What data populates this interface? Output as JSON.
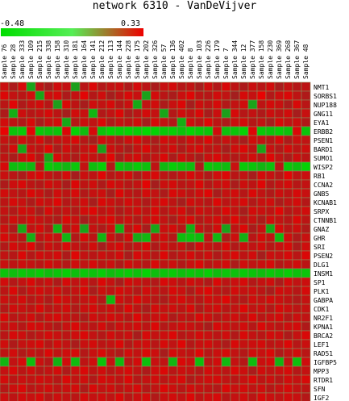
{
  "chart_data": {
    "type": "heatmap",
    "title": "network 6310 - VanDeVijver",
    "scale": {
      "min": -0.48,
      "max": 0.33,
      "min_label": "-0.48",
      "max_label": "0.33",
      "low_color": "#00dd00",
      "mid_color": "#444444",
      "high_color": "#ee0000"
    },
    "columns": [
      "Sample 76",
      "Sample 28",
      "Sample 333",
      "Sample 109",
      "Sample 215",
      "Sample 338",
      "Sample 158",
      "Sample 310",
      "Sample 181",
      "Sample 164",
      "Sample 141",
      "Sample 212",
      "Sample 113",
      "Sample 144",
      "Sample 228",
      "Sample 175",
      "Sample 202",
      "Sample 326",
      "Sample 57",
      "Sample 136",
      "Sample 402",
      "Sample 8",
      "Sample 103",
      "Sample 226",
      "Sample 179",
      "Sample 7",
      "Sample 344",
      "Sample 12",
      "Sample 377",
      "Sample 158",
      "Sample 230",
      "Sample 369",
      "Sample 268",
      "Sample 367",
      "Sample 48"
    ],
    "rows": [
      "NMT1",
      "SORBS1",
      "NUP188",
      "GNG11",
      "EYA1",
      "ERBB2",
      "PSEN1",
      "BARD1",
      "SUMO1",
      "WISP2",
      "RB1",
      "CCNA2",
      "GNB5",
      "KCNAB1",
      "SRPX",
      "CTNNB1",
      "GNAZ",
      "GHR",
      "SRI",
      "PSEN2",
      "DLG1",
      "INSM1",
      "SP1",
      "PLK1",
      "GABPA",
      "CDK1",
      "NR2F1",
      "KPNA1",
      "BRCA2",
      "LEF1",
      "RAD51",
      "IGFBP5",
      "MPP3",
      "RTDR1",
      "SFN",
      "IGF2"
    ],
    "values": [
      [
        0.18,
        0.05,
        0.22,
        -0.08,
        0.12,
        0.02,
        0.2,
        0.15,
        -0.05,
        0.1,
        0.25,
        0.08,
        0.14,
        0.18,
        0.06,
        0.22,
        0.11,
        0.04,
        0.16,
        0.21,
        0.09,
        0.13,
        0.02,
        0.19,
        0.07,
        0.24,
        0.12,
        0.05,
        0.17,
        0.1,
        0.2,
        0.03,
        0.15,
        0.08,
        0.12
      ],
      [
        0.25,
        0.14,
        0.1,
        0.2,
        -0.1,
        0.18,
        0.22,
        0.05,
        0.15,
        0.28,
        0.08,
        0.19,
        0.02,
        0.12,
        0.23,
        0.16,
        -0.06,
        0.21,
        0.1,
        0.04,
        0.17,
        0.26,
        0.11,
        0.09,
        0.2,
        0.13,
        0.01,
        0.22,
        0.15,
        0.3,
        0.07,
        0.18,
        0.24,
        0.12,
        0.06
      ],
      [
        0.1,
        0.27,
        0.06,
        0.15,
        0.2,
        0.09,
        -0.04,
        0.24,
        0.12,
        0.03,
        0.19,
        0.14,
        0.22,
        0.08,
        0.17,
        -0.12,
        0.13,
        0.2,
        0.05,
        0.16,
        0.25,
        0.02,
        0.18,
        0.11,
        0.22,
        0.07,
        0.14,
        0.19,
        -0.08,
        0.12,
        0.21,
        0.16,
        0.04,
        0.23,
        0.1
      ],
      [
        0.05,
        -0.15,
        0.18,
        0.09,
        0.14,
        0.22,
        0.11,
        0.02,
        0.2,
        0.16,
        -0.2,
        0.07,
        0.13,
        0.25,
        0.04,
        0.1,
        0.21,
        0.15,
        -0.1,
        0.08,
        0.19,
        0.12,
        0.24,
        0.03,
        0.17,
        -0.05,
        0.22,
        0.09,
        0.14,
        0.06,
        0.18,
        0.11,
        0.2,
        0.02,
        0.16
      ],
      [
        0.2,
        0.12,
        0.07,
        0.23,
        0.03,
        0.16,
        0.21,
        -0.12,
        0.09,
        0.18,
        0.13,
        0.25,
        0.06,
        0.15,
        0.11,
        0.2,
        0.02,
        0.22,
        0.14,
        0.08,
        -0.15,
        0.19,
        0.1,
        0.26,
        0.12,
        0.05,
        0.17,
        0.21,
        0.09,
        0.14,
        0.02,
        0.23,
        0.13,
        0.18,
        0.07
      ],
      [
        0.3,
        -0.3,
        -0.35,
        0.28,
        -0.32,
        -0.28,
        -0.3,
        0.25,
        -0.4,
        -0.25,
        0.22,
        -0.3,
        -0.42,
        -0.38,
        -0.4,
        -0.36,
        -0.45,
        -0.4,
        -0.34,
        -0.38,
        -0.3,
        -0.42,
        -0.35,
        -0.3,
        0.2,
        -0.28,
        -0.32,
        -0.4,
        0.26,
        -0.34,
        -0.3,
        -0.36,
        -0.28,
        0.24,
        -0.3
      ],
      [
        0.15,
        0.08,
        0.19,
        0.11,
        0.22,
        0.05,
        0.14,
        0.17,
        0.24,
        0.09,
        0.02,
        0.2,
        0.13,
        0.06,
        0.18,
        0.23,
        0.1,
        0.04,
        0.21,
        0.15,
        0.08,
        0.19,
        0.12,
        0.25,
        0.07,
        0.16,
        0.11,
        0.03,
        0.2,
        0.14,
        0.09,
        0.22,
        0.05,
        0.17,
        0.13
      ],
      [
        0.08,
        0.21,
        -0.1,
        0.16,
        0.12,
        0.27,
        0.04,
        0.19,
        0.09,
        0.14,
        0.23,
        -0.05,
        0.18,
        0.11,
        0.02,
        0.15,
        0.24,
        0.08,
        0.13,
        0.2,
        0.06,
        0.17,
        0.22,
        0.1,
        0.14,
        0.03,
        0.19,
        0.25,
        0.12,
        -0.08,
        0.16,
        0.07,
        0.21,
        0.11,
        0.18
      ],
      [
        0.12,
        0.04,
        0.17,
        0.25,
        0.09,
        -0.08,
        0.22,
        0.13,
        0.06,
        0.2,
        0.15,
        0.1,
        0.28,
        0.03,
        0.16,
        0.21,
        0.08,
        0.14,
        0.24,
        0.05,
        0.19,
        0.11,
        0.02,
        0.17,
        0.23,
        0.12,
        0.07,
        0.15,
        0.2,
        0.09,
        0.26,
        0.13,
        0.04,
        0.18,
        0.1
      ],
      [
        0.22,
        -0.25,
        -0.3,
        -0.22,
        0.1,
        -0.35,
        -0.28,
        -0.2,
        -0.32,
        0.14,
        -0.26,
        -0.38,
        0.08,
        -0.3,
        -0.24,
        -0.34,
        -0.28,
        0.12,
        -0.22,
        -0.36,
        -0.3,
        -0.26,
        0.05,
        -0.32,
        -0.28,
        -0.24,
        0.16,
        -0.34,
        -0.3,
        -0.2,
        -0.28,
        0.1,
        -0.32,
        -0.26,
        -0.4
      ],
      [
        0.16,
        0.1,
        0.05,
        0.19,
        0.24,
        0.13,
        0.08,
        0.21,
        0.02,
        0.17,
        0.12,
        0.26,
        0.09,
        0.15,
        0.2,
        0.04,
        0.18,
        0.23,
        0.11,
        0.07,
        0.14,
        0.22,
        0.16,
        0.06,
        0.19,
        0.25,
        0.1,
        0.13,
        0.03,
        0.21,
        0.15,
        0.08,
        0.27,
        0.12,
        0.17
      ],
      [
        0.05,
        0.18,
        0.23,
        0.11,
        0.07,
        0.2,
        0.15,
        0.03,
        0.25,
        0.12,
        0.19,
        0.06,
        0.22,
        0.16,
        0.09,
        0.14,
        0.28,
        0.02,
        0.17,
        0.21,
        0.1,
        0.13,
        0.24,
        0.08,
        0.16,
        0.2,
        0.04,
        0.18,
        0.12,
        0.26,
        0.07,
        0.15,
        0.21,
        0.09,
        0.14
      ],
      [
        0.2,
        0.13,
        0.09,
        0.24,
        0.16,
        0.04,
        0.19,
        0.11,
        0.22,
        0.07,
        0.15,
        0.18,
        0.02,
        0.25,
        0.12,
        0.08,
        0.21,
        0.14,
        0.05,
        0.23,
        0.17,
        0.1,
        0.19,
        0.26,
        0.03,
        0.15,
        0.2,
        0.09,
        0.24,
        0.13,
        0.06,
        0.18,
        0.11,
        0.22,
        0.16
      ],
      [
        0.11,
        0.22,
        0.16,
        0.05,
        0.2,
        0.14,
        0.26,
        0.08,
        0.13,
        0.19,
        0.03,
        0.24,
        0.17,
        0.1,
        0.21,
        0.15,
        0.06,
        0.18,
        0.23,
        0.12,
        0.02,
        0.2,
        0.14,
        0.09,
        0.25,
        0.11,
        0.17,
        0.22,
        0.07,
        0.16,
        0.19,
        0.04,
        0.13,
        0.21,
        0.08
      ],
      [
        0.14,
        0.07,
        0.2,
        0.17,
        0.02,
        0.23,
        0.1,
        0.15,
        0.08,
        0.21,
        0.26,
        0.12,
        0.18,
        0.05,
        0.14,
        0.2,
        0.11,
        0.24,
        0.09,
        0.16,
        0.22,
        0.06,
        0.19,
        0.13,
        0.1,
        0.25,
        0.15,
        0.03,
        0.21,
        0.17,
        0.12,
        0.27,
        0.08,
        0.14,
        0.2
      ],
      [
        0.09,
        0.19,
        0.12,
        0.21,
        0.15,
        0.1,
        0.06,
        0.24,
        0.17,
        0.02,
        0.13,
        0.2,
        0.25,
        0.11,
        0.18,
        0.07,
        0.16,
        0.22,
        0.14,
        0.04,
        0.19,
        0.23,
        0.08,
        0.15,
        0.21,
        0.12,
        0.26,
        0.1,
        0.16,
        0.05,
        0.2,
        0.14,
        0.09,
        0.24,
        0.11
      ],
      [
        0.18,
        0.05,
        -0.12,
        0.13,
        0.22,
        0.08,
        -0.18,
        0.1,
        0.2,
        -0.08,
        0.15,
        0.06,
        0.19,
        -0.14,
        0.11,
        0.24,
        0.03,
        -0.1,
        0.17,
        0.21,
        0.09,
        -0.16,
        0.14,
        0.07,
        0.2,
        -0.06,
        0.12,
        0.25,
        0.04,
        0.16,
        -0.12,
        0.22,
        0.1,
        0.18,
        0.06
      ],
      [
        0.22,
        0.16,
        0.09,
        -0.15,
        0.12,
        0.2,
        0.14,
        -0.18,
        0.07,
        0.23,
        0.11,
        -0.2,
        0.17,
        0.04,
        0.21,
        -0.12,
        -0.22,
        0.15,
        0.19,
        0.08,
        -0.26,
        -0.3,
        -0.24,
        0.13,
        -0.2,
        0.06,
        0.18,
        -0.16,
        0.1,
        0.22,
        0.14,
        -0.22,
        0.2,
        0.05,
        0.16
      ],
      [
        0.07,
        0.21,
        0.15,
        0.26,
        0.04,
        0.18,
        0.11,
        0.23,
        0.14,
        0.09,
        0.2,
        0.02,
        0.16,
        0.22,
        0.08,
        0.13,
        0.25,
        0.06,
        0.19,
        0.12,
        0.17,
        0.03,
        0.21,
        0.15,
        0.1,
        0.24,
        0.07,
        0.18,
        0.13,
        0.2,
        0.09,
        0.16,
        0.23,
        0.04,
        0.19
      ],
      [
        0.13,
        0.09,
        0.24,
        0.08,
        0.19,
        0.15,
        0.21,
        0.05,
        0.26,
        0.14,
        0.1,
        0.17,
        0.12,
        0.2,
        0.03,
        0.22,
        0.16,
        0.09,
        0.25,
        0.07,
        0.13,
        0.21,
        0.11,
        0.18,
        0.06,
        0.16,
        0.23,
        0.12,
        0.2,
        0.02,
        0.17,
        0.14,
        0.22,
        0.1,
        0.25
      ],
      [
        0.16,
        0.12,
        0.18,
        0.14,
        0.1,
        0.21,
        0.15,
        0.08,
        0.19,
        0.13,
        0.22,
        0.11,
        0.17,
        0.06,
        0.2,
        0.14,
        0.09,
        0.23,
        0.12,
        0.18,
        0.07,
        0.16,
        0.24,
        0.1,
        0.15,
        0.21,
        0.05,
        0.19,
        0.13,
        0.17,
        0.22,
        0.08,
        0.14,
        0.2,
        0.11
      ],
      [
        -0.3,
        -0.26,
        -0.32,
        -0.28,
        -0.35,
        -0.24,
        -0.3,
        -0.38,
        -0.27,
        -0.33,
        -0.29,
        -0.36,
        -0.25,
        -0.31,
        -0.34,
        -0.28,
        -0.4,
        -0.26,
        -0.3,
        -0.35,
        -0.27,
        -0.32,
        -0.29,
        -0.37,
        -0.24,
        -0.31,
        -0.28,
        -0.34,
        -0.3,
        -0.26,
        -0.33,
        -0.29,
        -0.36,
        -0.27,
        -0.31
      ],
      [
        0.2,
        0.08,
        0.14,
        0.24,
        0.11,
        0.17,
        0.05,
        0.22,
        0.13,
        0.19,
        0.09,
        0.25,
        0.15,
        0.03,
        0.21,
        0.16,
        0.12,
        0.07,
        0.23,
        0.18,
        0.1,
        0.2,
        0.14,
        0.06,
        0.24,
        0.11,
        0.17,
        0.22,
        0.08,
        0.15,
        0.19,
        0.04,
        0.21,
        0.13,
        0.18
      ],
      [
        0.11,
        0.24,
        0.06,
        0.17,
        0.21,
        0.13,
        0.19,
        0.09,
        0.15,
        0.25,
        0.04,
        0.18,
        0.12,
        0.22,
        0.16,
        0.07,
        0.2,
        0.14,
        0.1,
        0.23,
        0.17,
        0.05,
        0.19,
        0.26,
        0.12,
        0.08,
        0.21,
        0.15,
        0.18,
        0.11,
        0.03,
        0.2,
        0.16,
        0.09,
        0.22
      ],
      [
        0.17,
        0.13,
        0.21,
        0.09,
        0.16,
        0.06,
        0.23,
        0.18,
        0.11,
        0.14,
        0.2,
        0.08,
        -0.22,
        0.19,
        0.12,
        0.24,
        0.15,
        0.1,
        0.05,
        0.17,
        0.22,
        0.13,
        0.09,
        0.2,
        0.16,
        0.26,
        0.11,
        0.07,
        0.19,
        0.14,
        0.21,
        0.17,
        0.12,
        0.06,
        0.15
      ],
      [
        0.08,
        0.19,
        0.16,
        0.12,
        0.24,
        0.1,
        0.14,
        0.2,
        0.07,
        0.17,
        0.22,
        0.13,
        0.18,
        0.09,
        0.25,
        0.11,
        0.04,
        0.21,
        0.15,
        0.19,
        0.12,
        0.23,
        0.06,
        0.16,
        0.2,
        0.1,
        0.14,
        0.26,
        0.13,
        0.18,
        0.08,
        0.22,
        0.17,
        0.11,
        0.15
      ],
      [
        0.23,
        0.1,
        0.13,
        0.2,
        0.07,
        0.18,
        0.22,
        0.15,
        0.11,
        0.05,
        0.19,
        0.14,
        0.21,
        0.16,
        0.09,
        0.25,
        0.12,
        0.17,
        0.2,
        0.06,
        0.14,
        0.11,
        0.23,
        0.18,
        0.08,
        0.15,
        0.19,
        0.12,
        0.24,
        0.1,
        0.16,
        0.21,
        0.07,
        0.17,
        0.13
      ],
      [
        0.14,
        0.17,
        0.09,
        0.22,
        0.19,
        0.12,
        0.06,
        0.16,
        0.24,
        0.13,
        0.1,
        0.21,
        0.07,
        0.18,
        0.15,
        0.2,
        0.11,
        0.25,
        0.08,
        0.14,
        0.19,
        0.16,
        0.12,
        0.03,
        0.22,
        0.17,
        0.13,
        0.2,
        0.09,
        0.24,
        0.15,
        0.11,
        0.18,
        0.21,
        0.06
      ],
      [
        0.1,
        0.22,
        0.18,
        0.07,
        0.13,
        0.21,
        0.16,
        0.11,
        0.19,
        0.24,
        0.14,
        0.08,
        0.2,
        0.12,
        0.17,
        0.03,
        0.22,
        0.15,
        0.18,
        0.25,
        0.09,
        0.13,
        0.21,
        0.16,
        0.11,
        0.19,
        0.07,
        0.23,
        0.14,
        0.1,
        0.2,
        0.17,
        0.05,
        0.15,
        0.24
      ],
      [
        0.19,
        0.06,
        0.15,
        0.18,
        0.23,
        0.09,
        0.2,
        0.13,
        0.04,
        0.16,
        0.21,
        0.11,
        0.14,
        0.24,
        0.07,
        0.17,
        0.19,
        0.1,
        0.22,
        0.13,
        0.26,
        0.08,
        0.16,
        0.2,
        0.12,
        0.05,
        0.23,
        0.15,
        0.18,
        0.21,
        0.11,
        0.14,
        0.25,
        0.09,
        0.17
      ],
      [
        0.12,
        0.2,
        0.07,
        0.15,
        0.1,
        0.25,
        0.13,
        0.19,
        0.22,
        0.08,
        0.16,
        0.23,
        0.11,
        0.06,
        0.2,
        0.14,
        0.24,
        0.18,
        0.03,
        0.21,
        0.15,
        0.12,
        0.26,
        0.09,
        0.17,
        0.22,
        0.14,
        0.08,
        0.19,
        0.16,
        0.24,
        0.06,
        0.13,
        0.2,
        0.1
      ],
      [
        -0.2,
        0.14,
        0.22,
        -0.26,
        0.17,
        0.08,
        -0.18,
        0.2,
        -0.24,
        0.12,
        0.19,
        -0.3,
        0.15,
        -0.22,
        0.1,
        0.21,
        -0.28,
        0.16,
        0.13,
        -0.2,
        0.24,
        0.18,
        -0.26,
        0.11,
        0.2,
        -0.22,
        0.15,
        0.09,
        -0.24,
        0.17,
        0.22,
        -0.18,
        0.14,
        -0.28,
        0.19
      ],
      [
        0.15,
        0.23,
        0.11,
        0.19,
        0.08,
        0.14,
        0.21,
        0.06,
        0.17,
        0.24,
        0.12,
        0.2,
        0.09,
        0.16,
        0.22,
        0.13,
        0.05,
        0.19,
        0.25,
        0.1,
        0.18,
        0.14,
        0.07,
        0.21,
        0.16,
        0.11,
        0.24,
        0.18,
        0.04,
        0.2,
        0.13,
        0.17,
        0.22,
        0.08,
        0.15
      ],
      [
        0.21,
        0.11,
        0.17,
        0.13,
        0.2,
        0.16,
        0.09,
        0.24,
        0.14,
        0.19,
        0.07,
        0.22,
        0.18,
        0.12,
        0.25,
        0.08,
        0.15,
        0.2,
        0.11,
        0.17,
        0.23,
        0.06,
        0.14,
        0.19,
        0.21,
        0.13,
        0.1,
        0.16,
        0.24,
        0.12,
        0.18,
        0.09,
        0.2,
        0.15,
        0.23
      ],
      [
        0.09,
        0.18,
        0.24,
        0.1,
        0.15,
        0.2,
        0.12,
        0.17,
        0.21,
        0.06,
        0.23,
        0.14,
        0.19,
        0.11,
        0.16,
        0.22,
        0.08,
        0.13,
        0.25,
        0.18,
        0.1,
        0.2,
        0.15,
        0.12,
        0.07,
        0.24,
        0.17,
        0.21,
        0.13,
        0.19,
        0.09,
        0.16,
        0.22,
        0.14,
        0.11
      ],
      [
        0.17,
        0.12,
        0.2,
        0.16,
        0.22,
        0.09,
        0.18,
        0.14,
        0.11,
        0.21,
        0.15,
        0.19,
        0.13,
        0.24,
        0.1,
        0.17,
        0.21,
        0.07,
        0.16,
        0.2,
        0.14,
        0.25,
        0.12,
        0.18,
        0.22,
        0.09,
        0.15,
        0.19,
        0.11,
        0.23,
        0.17,
        0.13,
        0.2,
        0.16,
        0.08
      ]
    ]
  }
}
